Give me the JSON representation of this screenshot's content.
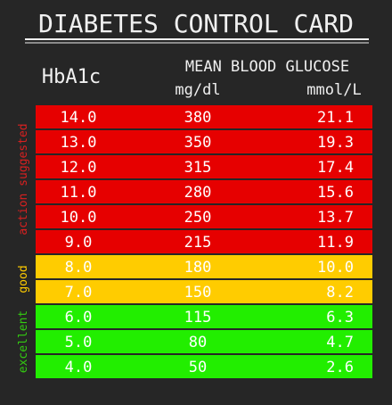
{
  "header": {
    "title": "DIABETES CONTROL CARD"
  },
  "columns": {
    "hba1c": "HbA1c",
    "glucose": "MEAN BLOOD GLUCOSE",
    "mgdl": "mg/dl",
    "mmol": "mmol/L"
  },
  "groups": [
    {
      "label": "action suggested",
      "color": "#e60000",
      "label_color": "#d92020",
      "rows": [
        [
          "14.0",
          "380",
          "21.1"
        ],
        [
          "13.0",
          "350",
          "19.3"
        ],
        [
          "12.0",
          "315",
          "17.4"
        ],
        [
          "11.0",
          "280",
          "15.6"
        ],
        [
          "10.0",
          "250",
          "13.7"
        ],
        [
          "9.0",
          "215",
          "11.9"
        ]
      ]
    },
    {
      "label": "good",
      "color": "#ffcc00",
      "label_color": "#ffcc00",
      "rows": [
        [
          "8.0",
          "180",
          "10.0"
        ],
        [
          "7.0",
          "150",
          "8.2"
        ]
      ]
    },
    {
      "label": "excellent",
      "color": "#22ee00",
      "label_color": "#33cc11",
      "rows": [
        [
          "6.0",
          "115",
          "6.3"
        ],
        [
          "5.0",
          "80",
          "4.7"
        ],
        [
          "4.0",
          "50",
          "2.6"
        ]
      ]
    }
  ]
}
